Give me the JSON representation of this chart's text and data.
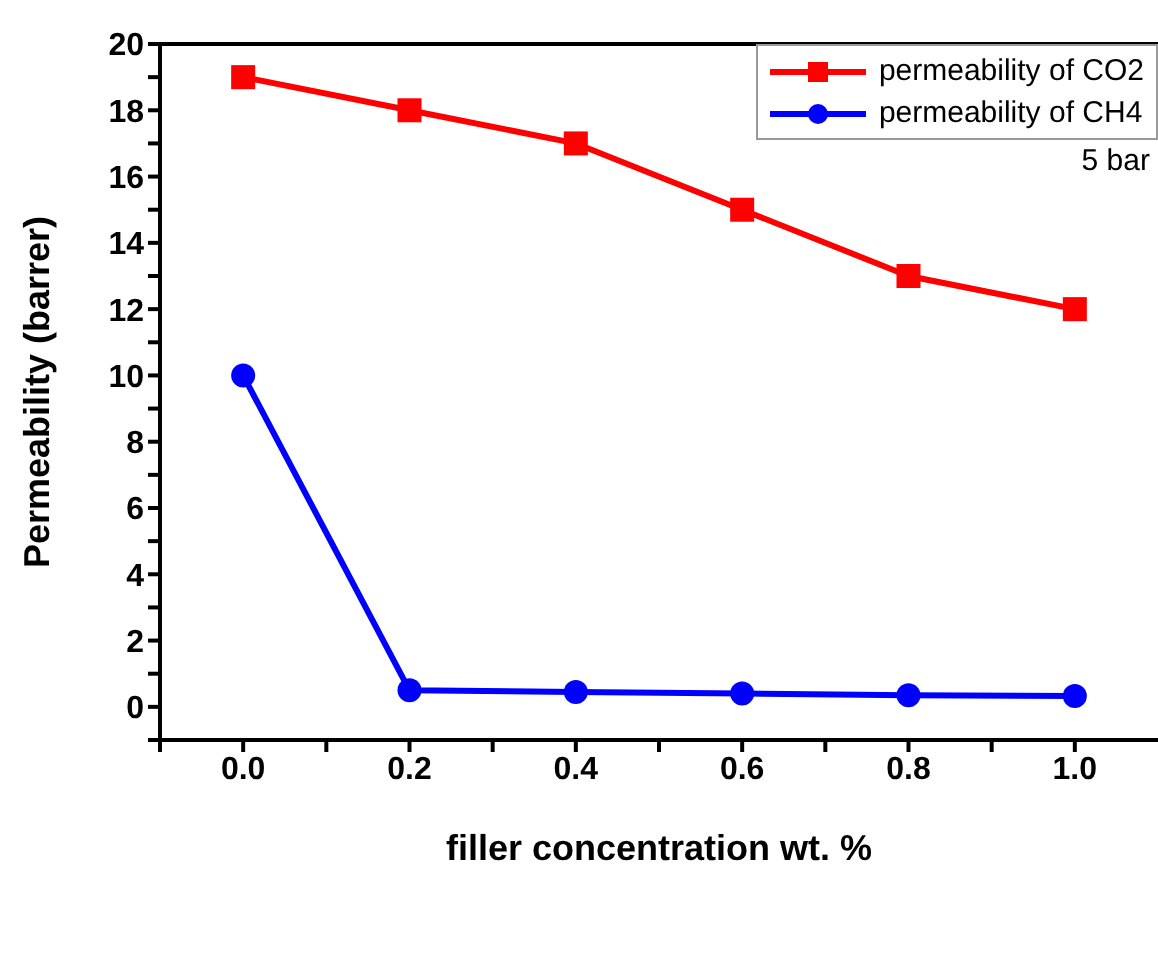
{
  "chart_data": {
    "type": "line",
    "xlabel": "filler concentration wt. %",
    "ylabel": "Permeability (barrer)",
    "x": [
      0.0,
      0.2,
      0.4,
      0.6,
      0.8,
      1.0
    ],
    "series": [
      {
        "name": "permeability of CO2",
        "color": "#ff0000",
        "marker": "square",
        "values": [
          19,
          18,
          17,
          15,
          13,
          12
        ]
      },
      {
        "name": "permeability of CH4",
        "color": "#0000ff",
        "marker": "circle",
        "values": [
          10,
          0.5,
          0.45,
          0.4,
          0.35,
          0.33
        ]
      }
    ],
    "xlim": [
      -0.1,
      1.1
    ],
    "xticks": [
      {
        "value": -0.1,
        "label": null
      },
      "0.0",
      {
        "value": 0.1,
        "label": null
      },
      0.2,
      {
        "value": 0.3,
        "label": null
      },
      0.4,
      {
        "value": 0.5,
        "label": null
      },
      0.6,
      {
        "value": 0.7,
        "label": null
      },
      0.8,
      {
        "value": 0.9,
        "label": null
      },
      "1.0"
    ],
    "ylim": [
      -1,
      20
    ],
    "yticks": [
      {
        "value": -1,
        "label": null
      },
      0,
      {
        "value": 1,
        "label": null
      },
      2,
      {
        "value": 3,
        "label": null
      },
      4,
      {
        "value": 5,
        "label": null
      },
      6,
      {
        "value": 7,
        "label": null
      },
      8,
      {
        "value": 9,
        "label": null
      },
      10,
      {
        "value": 11,
        "label": null
      },
      12,
      {
        "value": 13,
        "label": null
      },
      14,
      {
        "value": 15,
        "label": null
      },
      16,
      {
        "value": 17,
        "label": null
      },
      18,
      {
        "value": 19,
        "label": null
      },
      20
    ],
    "annotations": [
      "5 bar"
    ],
    "legend": "top right",
    "grid": false,
    "line_style": "solid"
  }
}
